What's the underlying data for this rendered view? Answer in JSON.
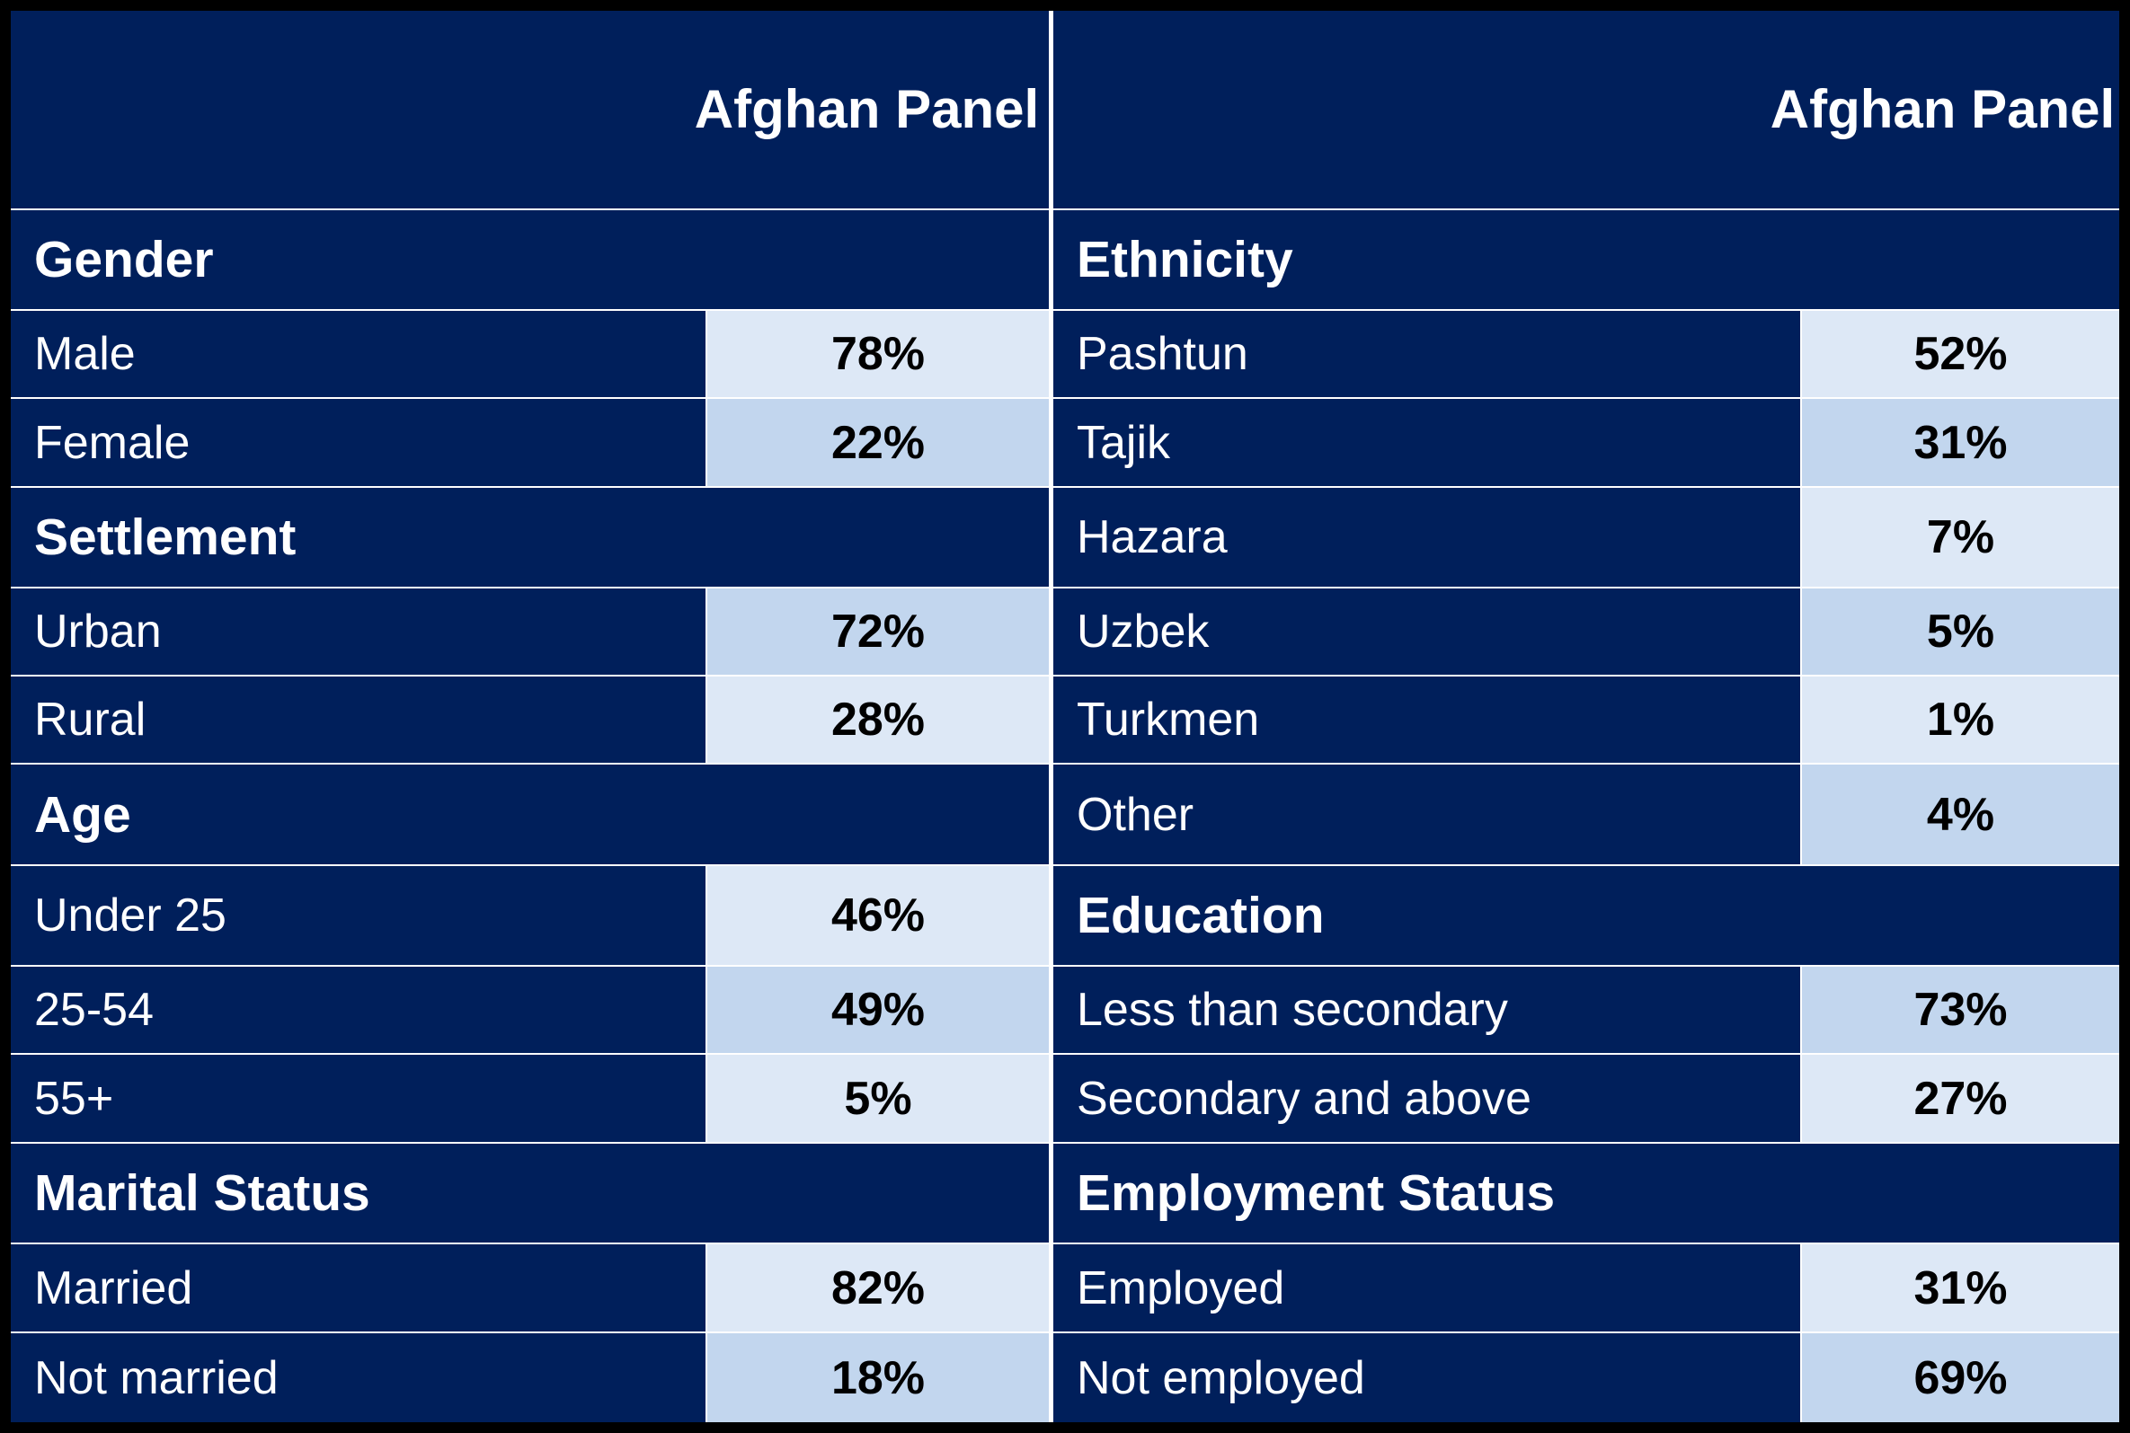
{
  "header": {
    "col_title_left": "Afghan Panel",
    "col_title_right": "Afghan Panel"
  },
  "left": [
    {
      "type": "section",
      "label": "Gender"
    },
    {
      "type": "row",
      "label": "Male",
      "value": "78%"
    },
    {
      "type": "row",
      "label": "Female",
      "value": "22%"
    },
    {
      "type": "section",
      "label": "Settlement"
    },
    {
      "type": "row",
      "label": "Urban",
      "value": "72%"
    },
    {
      "type": "row",
      "label": "Rural",
      "value": "28%"
    },
    {
      "type": "section",
      "label": "Age"
    },
    {
      "type": "row",
      "label": "Under 25",
      "value": "46%"
    },
    {
      "type": "row",
      "label": "25-54",
      "value": "49%"
    },
    {
      "type": "row",
      "label": "55+",
      "value": "5%"
    },
    {
      "type": "section",
      "label": "Marital Status"
    },
    {
      "type": "row",
      "label": "Married",
      "value": "82%"
    },
    {
      "type": "row",
      "label": "Not married",
      "value": "18%"
    }
  ],
  "right": [
    {
      "type": "section",
      "label": "Ethnicity"
    },
    {
      "type": "row",
      "label": "Pashtun",
      "value": "52%"
    },
    {
      "type": "row",
      "label": "Tajik",
      "value": "31%"
    },
    {
      "type": "row",
      "label": "Hazara",
      "value": "7%"
    },
    {
      "type": "row",
      "label": "Uzbek",
      "value": "5%"
    },
    {
      "type": "row",
      "label": "Turkmen",
      "value": "1%"
    },
    {
      "type": "row",
      "label": "Other",
      "value": "4%"
    },
    {
      "type": "section",
      "label": "Education"
    },
    {
      "type": "row",
      "label": "Less than secondary",
      "value": "73%"
    },
    {
      "type": "row",
      "label": "Secondary and above",
      "value": "27%"
    },
    {
      "type": "section",
      "label": "Employment Status"
    },
    {
      "type": "row",
      "label": "Employed",
      "value": "31%"
    },
    {
      "type": "row",
      "label": "Not employed",
      "value": "69%"
    }
  ],
  "colors": {
    "navy": "#001F5B",
    "cell_light": "#DDE8F6",
    "cell_mid": "#C2D6EE",
    "border": "#FFFFFF"
  }
}
